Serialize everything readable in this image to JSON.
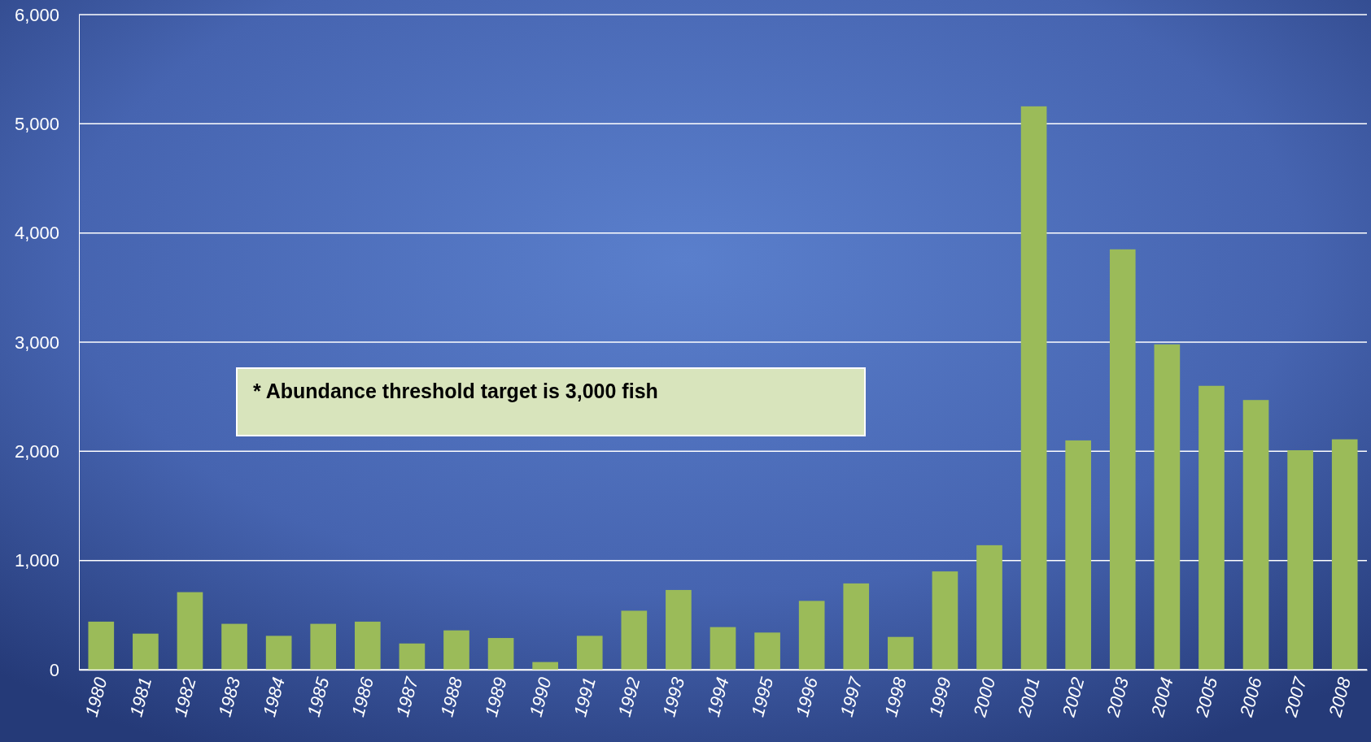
{
  "chart_data": {
    "type": "bar",
    "categories": [
      "1980",
      "1981",
      "1982",
      "1983",
      "1984",
      "1985",
      "1986",
      "1987",
      "1988",
      "1989",
      "1990",
      "1991",
      "1992",
      "1993",
      "1994",
      "1995",
      "1996",
      "1997",
      "1998",
      "1999",
      "2000",
      "2001",
      "2002",
      "2003",
      "2004",
      "2005",
      "2006",
      "2007",
      "2008"
    ],
    "values": [
      440,
      330,
      710,
      420,
      310,
      420,
      440,
      240,
      360,
      290,
      70,
      310,
      540,
      730,
      390,
      340,
      630,
      790,
      300,
      900,
      1140,
      5160,
      2100,
      3850,
      2980,
      2600,
      2470,
      2010,
      2110
    ],
    "color": "#9bbb59",
    "ylim": [
      0,
      6000
    ],
    "yticks": [
      {
        "value": 0,
        "label": "0"
      },
      {
        "value": 1000,
        "label": "1,000"
      },
      {
        "value": 2000,
        "label": "2,000"
      },
      {
        "value": 3000,
        "label": "3,000"
      },
      {
        "value": 4000,
        "label": "4,000"
      },
      {
        "value": 5000,
        "label": "5,000"
      },
      {
        "value": 6000,
        "label": "6,000"
      }
    ],
    "grid": "y",
    "annotations": [
      "* Abundance threshold target is 3,000 fish"
    ]
  }
}
